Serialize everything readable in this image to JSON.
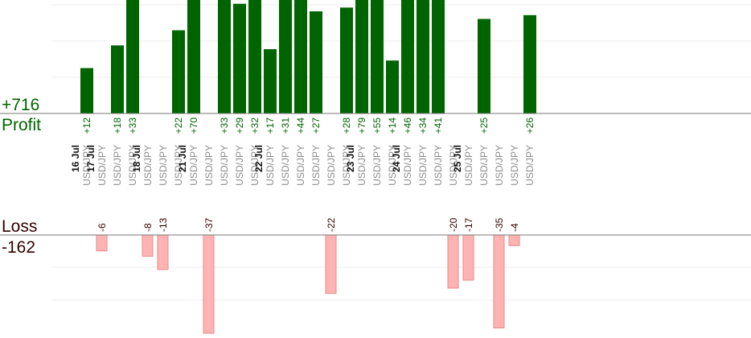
{
  "summary": {
    "profit_total": "+716",
    "profit_label": "Profit",
    "loss_label": "Loss",
    "loss_total": "-162"
  },
  "colors": {
    "profit": "#006400",
    "loss": "#ffb3b3",
    "loss_border": "#e88a8a",
    "text_dark": "#330000",
    "pair_text": "#8c8c8c",
    "axis": "#777777",
    "grid": "#eeeeee"
  },
  "chart_data": {
    "type": "bar",
    "trades": [
      {
        "date": "16 Jul",
        "pair": "USD/JPY",
        "value": 12
      },
      {
        "date": "17 Jul",
        "pair": "USD/JPY",
        "value": -6
      },
      {
        "date": "",
        "pair": "USD/JPY",
        "value": 18
      },
      {
        "date": "",
        "pair": "USD/JPY",
        "value": 33
      },
      {
        "date": "18 Jul",
        "pair": "USD/JPY",
        "value": -8
      },
      {
        "date": "",
        "pair": "USD/JPY",
        "value": -13
      },
      {
        "date": "",
        "pair": "USD/JPY",
        "value": 22
      },
      {
        "date": "21 Jul",
        "pair": "USD/JPY",
        "value": 70
      },
      {
        "date": "",
        "pair": "USD/JPY",
        "value": -37
      },
      {
        "date": "",
        "pair": "USD/JPY",
        "value": 33
      },
      {
        "date": "",
        "pair": "USD/JPY",
        "value": 29
      },
      {
        "date": "",
        "pair": "USD/JPY",
        "value": 32
      },
      {
        "date": "22 Jul",
        "pair": "USD/JPY",
        "value": 17
      },
      {
        "date": "",
        "pair": "USD/JPY",
        "value": 31
      },
      {
        "date": "",
        "pair": "USD/JPY",
        "value": 44
      },
      {
        "date": "",
        "pair": "USD/JPY",
        "value": 27
      },
      {
        "date": "",
        "pair": "USD/JPY",
        "value": -22
      },
      {
        "date": "",
        "pair": "USD/JPY",
        "value": 28
      },
      {
        "date": "23 Jul",
        "pair": "USD/JPY",
        "value": 79
      },
      {
        "date": "",
        "pair": "USD/JPY",
        "value": 55
      },
      {
        "date": "",
        "pair": "USD/JPY",
        "value": 14
      },
      {
        "date": "24 Jul",
        "pair": "USD/JPY",
        "value": 46
      },
      {
        "date": "",
        "pair": "USD/JPY",
        "value": 34
      },
      {
        "date": "",
        "pair": "USD/JPY",
        "value": 41
      },
      {
        "date": "",
        "pair": "USD/JPY",
        "value": -20
      },
      {
        "date": "25 Jul",
        "pair": "USD/JPY",
        "value": -17
      },
      {
        "date": "",
        "pair": "USD/JPY",
        "value": 25
      },
      {
        "date": "",
        "pair": "USD/JPY",
        "value": -35
      },
      {
        "date": "",
        "pair": "USD/JPY",
        "value": -4
      },
      {
        "date": "",
        "pair": "USD/JPY",
        "value": 26
      }
    ],
    "profit_ylim": [
      0,
      36
    ],
    "loss_ylim": [
      -36,
      0
    ],
    "grid": true
  }
}
